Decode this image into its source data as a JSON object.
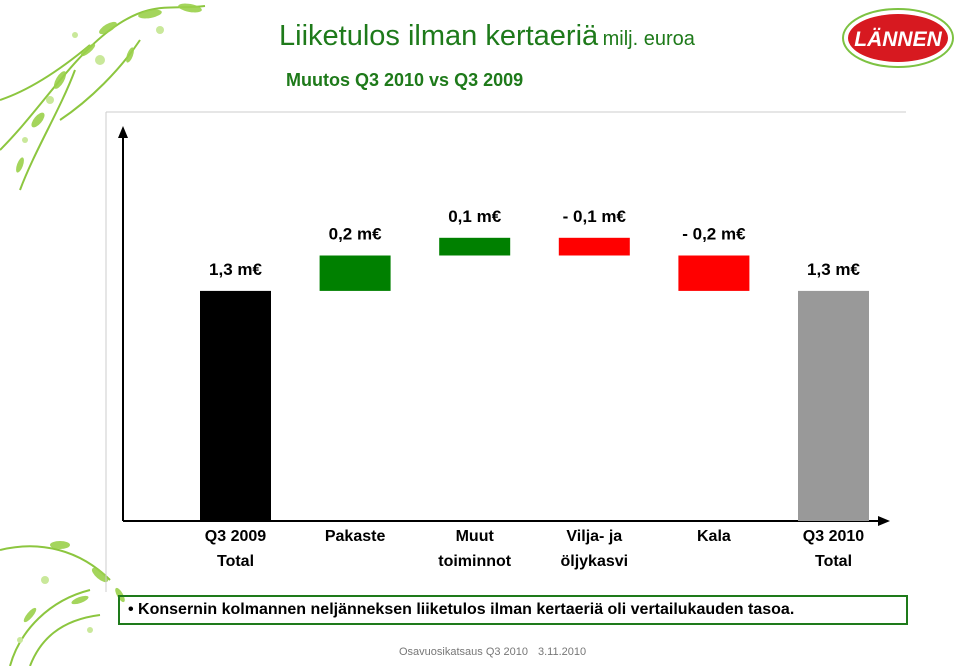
{
  "title": "Liiketulos ilman kertaeriä",
  "title_unit": "milj. euroa",
  "subtitle": "Muutos Q3 2010 vs Q3 2009",
  "logo_text": "LÄNNEN",
  "colors": {
    "start": "#000000",
    "increase": "#008000",
    "decrease": "#ff0000",
    "end": "#999999",
    "title": "#1e7a1a"
  },
  "chart_data": {
    "type": "bar",
    "subtype": "waterfall",
    "categories": [
      [
        "Q3 2009",
        "Total"
      ],
      [
        "Pakaste"
      ],
      [
        "Muut",
        "toiminnot"
      ],
      [
        "Vilja- ja",
        "öljykasvi"
      ],
      [
        "Kala"
      ],
      [
        "Q3 2010",
        "Total"
      ]
    ],
    "values": [
      1.3,
      0.2,
      0.1,
      -0.1,
      -0.2,
      1.3
    ],
    "kinds": [
      "start",
      "increase",
      "increase",
      "decrease",
      "decrease",
      "end"
    ],
    "labels": [
      "1,3 m€",
      "0,2 m€",
      "0,1 m€",
      "- 0,1 m€",
      "- 0,2 m€",
      "1,3 m€"
    ],
    "unit": "m€",
    "grid": false,
    "legend": "none"
  },
  "summary": "• Konsernin kolmannen neljänneksen liiketulos ilman kertaeriä oli vertailukauden tasoa.",
  "footer": {
    "left": "Osavuosikatsaus Q3 2010",
    "right": "3.11.2010"
  }
}
